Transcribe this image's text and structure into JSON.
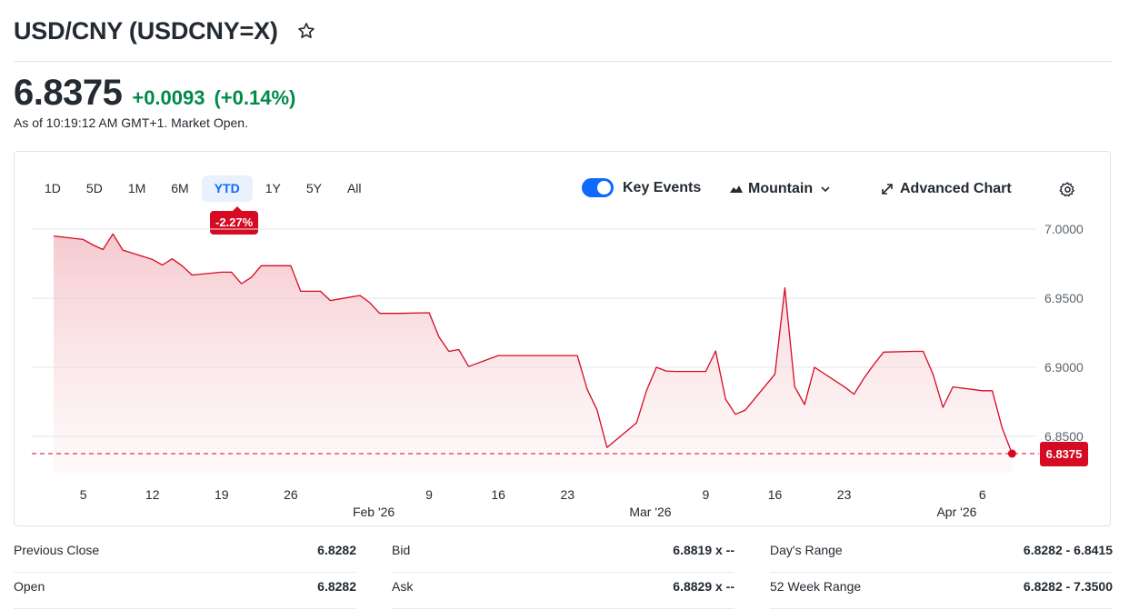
{
  "header": {
    "title": "USD/CNY (USDCNY=X)",
    "price": "6.8375",
    "change": "+0.0093",
    "change_pct": "(+0.14%)",
    "as_of": "As of 10:19:12 AM GMT+1. Market Open."
  },
  "toolbar": {
    "ranges": [
      "1D",
      "5D",
      "1M",
      "6M",
      "YTD",
      "1Y",
      "5Y",
      "All"
    ],
    "active_range": "YTD",
    "range_badge": "-2.27%",
    "key_events_label": "Key Events",
    "key_events_on": true,
    "chart_type_label": "Mountain",
    "advanced_chart_label": "Advanced Chart"
  },
  "colors": {
    "line": "#d60a22",
    "positive": "#008a4a",
    "accent": "#0f69ff"
  },
  "chart_data": {
    "type": "area",
    "ylim": [
      6.83,
      7.0
    ],
    "yticks": [
      "7.0000",
      "6.9500",
      "6.9000",
      "6.8500"
    ],
    "x_day_labels": [
      {
        "label": "5",
        "date": "2026-01-05"
      },
      {
        "label": "12",
        "date": "2026-01-12"
      },
      {
        "label": "19",
        "date": "2026-01-19"
      },
      {
        "label": "26",
        "date": "2026-01-26"
      },
      {
        "label": "9",
        "date": "2026-02-09"
      },
      {
        "label": "16",
        "date": "2026-02-16"
      },
      {
        "label": "23",
        "date": "2026-02-23"
      },
      {
        "label": "9",
        "date": "2026-03-09"
      },
      {
        "label": "16",
        "date": "2026-03-16"
      },
      {
        "label": "23",
        "date": "2026-03-23"
      },
      {
        "label": "6",
        "date": "2026-04-06"
      }
    ],
    "x_month_labels": [
      {
        "label": "Feb '26",
        "date": "2026-02-01"
      },
      {
        "label": "Mar '26",
        "date": "2026-03-01"
      },
      {
        "label": "Apr '26",
        "date": "2026-04-01"
      }
    ],
    "x": [
      "2026-01-02",
      "2026-01-05",
      "2026-01-06",
      "2026-01-07",
      "2026-01-08",
      "2026-01-09",
      "2026-01-12",
      "2026-01-13",
      "2026-01-14",
      "2026-01-15",
      "2026-01-16",
      "2026-01-19",
      "2026-01-20",
      "2026-01-21",
      "2026-01-22",
      "2026-01-23",
      "2026-01-26",
      "2026-01-27",
      "2026-01-28",
      "2026-01-29",
      "2026-01-30",
      "2026-02-02",
      "2026-02-03",
      "2026-02-04",
      "2026-02-05",
      "2026-02-06",
      "2026-02-09",
      "2026-02-10",
      "2026-02-11",
      "2026-02-12",
      "2026-02-13",
      "2026-02-16",
      "2026-02-17",
      "2026-02-18",
      "2026-02-19",
      "2026-02-20",
      "2026-02-23",
      "2026-02-24",
      "2026-02-25",
      "2026-02-26",
      "2026-02-27",
      "2026-03-02",
      "2026-03-03",
      "2026-03-04",
      "2026-03-05",
      "2026-03-06",
      "2026-03-09",
      "2026-03-10",
      "2026-03-11",
      "2026-03-12",
      "2026-03-13",
      "2026-03-16",
      "2026-03-17",
      "2026-03-18",
      "2026-03-19",
      "2026-03-20",
      "2026-03-23",
      "2026-03-24",
      "2026-03-25",
      "2026-03-26",
      "2026-03-27",
      "2026-03-30",
      "2026-03-31",
      "2026-04-01",
      "2026-04-02",
      "2026-04-03",
      "2026-04-06",
      "2026-04-07",
      "2026-04-08"
    ],
    "values": [
      6.995,
      6.9925,
      6.9885,
      6.9852,
      6.9965,
      6.9848,
      6.978,
      6.974,
      6.9785,
      6.9735,
      6.9668,
      6.9688,
      6.9688,
      6.9605,
      6.965,
      6.9735,
      6.9735,
      6.955,
      6.955,
      6.955,
      6.9483,
      6.952,
      6.9468,
      6.939,
      6.939,
      6.939,
      6.9395,
      6.922,
      6.9115,
      6.9128,
      6.9005,
      6.9085,
      6.9085,
      6.9085,
      6.9085,
      6.9085,
      6.9085,
      6.9085,
      6.884,
      6.8692,
      6.842,
      6.8598,
      6.883,
      6.9,
      6.8973,
      6.897,
      6.897,
      6.9118,
      6.877,
      6.866,
      6.869,
      6.895,
      6.9575,
      6.886,
      6.873,
      6.9,
      6.886,
      6.8805,
      6.892,
      6.902,
      6.911,
      6.9115,
      6.9115,
      6.895,
      6.871,
      6.8858,
      6.883,
      6.883,
      6.856
    ],
    "current_value": 6.8375,
    "current_label": "6.8375",
    "reference_line": 6.8375
  },
  "stats": {
    "col1": [
      {
        "label": "Previous Close",
        "value": "6.8282"
      },
      {
        "label": "Open",
        "value": "6.8282"
      }
    ],
    "col2": [
      {
        "label": "Bid",
        "value": "6.8819 x --"
      },
      {
        "label": "Ask",
        "value": "6.8829 x --"
      }
    ],
    "col3": [
      {
        "label": "Day's Range",
        "value": "6.8282 - 6.8415"
      },
      {
        "label": "52 Week Range",
        "value": "6.8282 - 7.3500"
      }
    ]
  }
}
